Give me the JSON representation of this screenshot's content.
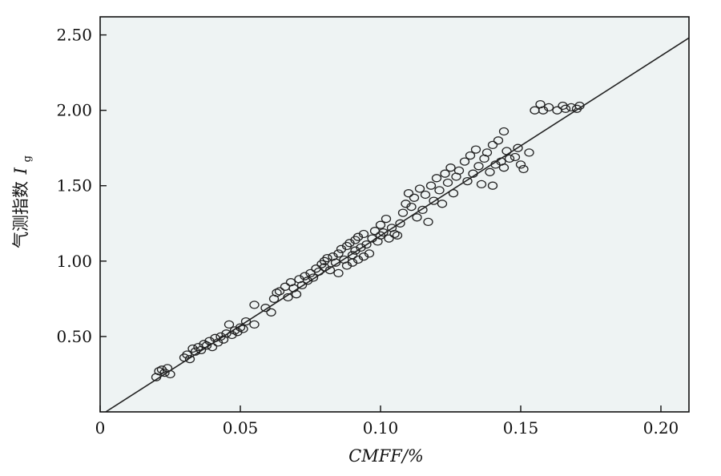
{
  "chart_data": {
    "type": "scatter",
    "xlabel": "CMFF/%",
    "ylabel": "气测指数",
    "ylabel_symbol": "I",
    "ylabel_subscript": "g",
    "xlim": [
      0,
      0.21
    ],
    "ylim": [
      0,
      2.62
    ],
    "x_ticks": [
      0,
      0.05,
      0.1,
      0.15,
      0.2
    ],
    "x_tick_labels": [
      "0",
      "0.05",
      "0.10",
      "0.15",
      "0.20"
    ],
    "y_ticks": [
      0.5,
      1.0,
      1.5,
      2.0,
      2.5
    ],
    "y_tick_labels": [
      "0.50",
      "1.00",
      "1.50",
      "2.00",
      "2.50"
    ],
    "grid": false,
    "plot_background": "#eef3f3",
    "marker_color": "#222222",
    "trend_line": {
      "x": [
        0.002,
        0.21
      ],
      "y": [
        0,
        2.48
      ],
      "color": "#222222"
    },
    "points": [
      [
        0.02,
        0.23
      ],
      [
        0.021,
        0.27
      ],
      [
        0.022,
        0.28
      ],
      [
        0.023,
        0.26
      ],
      [
        0.024,
        0.29
      ],
      [
        0.025,
        0.25
      ],
      [
        0.03,
        0.36
      ],
      [
        0.031,
        0.38
      ],
      [
        0.032,
        0.35
      ],
      [
        0.033,
        0.42
      ],
      [
        0.034,
        0.4
      ],
      [
        0.035,
        0.43
      ],
      [
        0.036,
        0.41
      ],
      [
        0.037,
        0.45
      ],
      [
        0.038,
        0.44
      ],
      [
        0.039,
        0.47
      ],
      [
        0.04,
        0.43
      ],
      [
        0.041,
        0.49
      ],
      [
        0.042,
        0.46
      ],
      [
        0.043,
        0.5
      ],
      [
        0.044,
        0.48
      ],
      [
        0.045,
        0.52
      ],
      [
        0.046,
        0.58
      ],
      [
        0.047,
        0.51
      ],
      [
        0.048,
        0.54
      ],
      [
        0.049,
        0.53
      ],
      [
        0.05,
        0.56
      ],
      [
        0.051,
        0.55
      ],
      [
        0.052,
        0.6
      ],
      [
        0.055,
        0.58
      ],
      [
        0.055,
        0.71
      ],
      [
        0.059,
        0.69
      ],
      [
        0.061,
        0.66
      ],
      [
        0.062,
        0.75
      ],
      [
        0.063,
        0.79
      ],
      [
        0.064,
        0.8
      ],
      [
        0.066,
        0.83
      ],
      [
        0.067,
        0.76
      ],
      [
        0.068,
        0.86
      ],
      [
        0.069,
        0.82
      ],
      [
        0.07,
        0.78
      ],
      [
        0.071,
        0.88
      ],
      [
        0.072,
        0.84
      ],
      [
        0.073,
        0.9
      ],
      [
        0.074,
        0.87
      ],
      [
        0.075,
        0.92
      ],
      [
        0.076,
        0.89
      ],
      [
        0.077,
        0.95
      ],
      [
        0.078,
        0.93
      ],
      [
        0.079,
        0.98
      ],
      [
        0.08,
        0.96
      ],
      [
        0.08,
        1.0
      ],
      [
        0.081,
        1.02
      ],
      [
        0.082,
        0.94
      ],
      [
        0.083,
        1.03
      ],
      [
        0.084,
        0.99
      ],
      [
        0.085,
        1.05
      ],
      [
        0.085,
        0.92
      ],
      [
        0.086,
        1.08
      ],
      [
        0.087,
        1.01
      ],
      [
        0.088,
        1.1
      ],
      [
        0.088,
        0.97
      ],
      [
        0.089,
        1.12
      ],
      [
        0.09,
        1.04
      ],
      [
        0.09,
        0.99
      ],
      [
        0.091,
        1.14
      ],
      [
        0.091,
        1.07
      ],
      [
        0.092,
        1.01
      ],
      [
        0.092,
        1.16
      ],
      [
        0.093,
        1.09
      ],
      [
        0.094,
        1.03
      ],
      [
        0.094,
        1.18
      ],
      [
        0.095,
        1.11
      ],
      [
        0.096,
        1.05
      ],
      [
        0.097,
        1.15
      ],
      [
        0.098,
        1.2
      ],
      [
        0.099,
        1.13
      ],
      [
        0.1,
        1.17
      ],
      [
        0.1,
        1.24
      ],
      [
        0.101,
        1.19
      ],
      [
        0.102,
        1.28
      ],
      [
        0.103,
        1.15
      ],
      [
        0.104,
        1.22
      ],
      [
        0.105,
        1.18
      ],
      [
        0.106,
        1.17
      ],
      [
        0.107,
        1.25
      ],
      [
        0.108,
        1.32
      ],
      [
        0.109,
        1.38
      ],
      [
        0.11,
        1.45
      ],
      [
        0.111,
        1.36
      ],
      [
        0.112,
        1.42
      ],
      [
        0.113,
        1.29
      ],
      [
        0.114,
        1.48
      ],
      [
        0.115,
        1.34
      ],
      [
        0.116,
        1.44
      ],
      [
        0.117,
        1.26
      ],
      [
        0.118,
        1.5
      ],
      [
        0.119,
        1.4
      ],
      [
        0.12,
        1.55
      ],
      [
        0.121,
        1.47
      ],
      [
        0.122,
        1.38
      ],
      [
        0.123,
        1.58
      ],
      [
        0.124,
        1.52
      ],
      [
        0.125,
        1.62
      ],
      [
        0.126,
        1.45
      ],
      [
        0.127,
        1.56
      ],
      [
        0.128,
        1.6
      ],
      [
        0.13,
        1.66
      ],
      [
        0.131,
        1.53
      ],
      [
        0.132,
        1.7
      ],
      [
        0.133,
        1.58
      ],
      [
        0.134,
        1.74
      ],
      [
        0.135,
        1.63
      ],
      [
        0.136,
        1.51
      ],
      [
        0.137,
        1.68
      ],
      [
        0.138,
        1.72
      ],
      [
        0.139,
        1.59
      ],
      [
        0.14,
        1.77
      ],
      [
        0.14,
        1.5
      ],
      [
        0.141,
        1.64
      ],
      [
        0.142,
        1.8
      ],
      [
        0.143,
        1.66
      ],
      [
        0.144,
        1.86
      ],
      [
        0.144,
        1.62
      ],
      [
        0.145,
        1.73
      ],
      [
        0.146,
        1.68
      ],
      [
        0.148,
        1.69
      ],
      [
        0.149,
        1.75
      ],
      [
        0.15,
        1.64
      ],
      [
        0.151,
        1.61
      ],
      [
        0.153,
        1.72
      ],
      [
        0.155,
        2.0
      ],
      [
        0.157,
        2.04
      ],
      [
        0.158,
        2.0
      ],
      [
        0.16,
        2.02
      ],
      [
        0.163,
        2.0
      ],
      [
        0.165,
        2.03
      ],
      [
        0.166,
        2.01
      ],
      [
        0.168,
        2.02
      ],
      [
        0.17,
        2.01
      ],
      [
        0.171,
        2.03
      ]
    ]
  }
}
